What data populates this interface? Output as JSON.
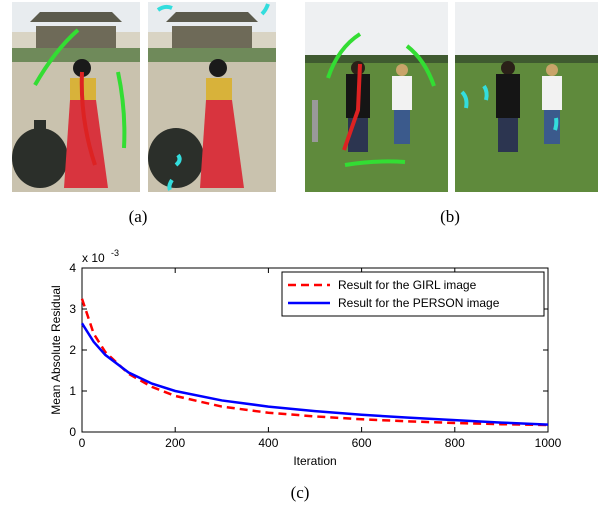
{
  "captions": [
    "(a)",
    "(b)",
    "(c)"
  ],
  "chart_data": {
    "type": "line",
    "xlabel": "Iteration",
    "ylabel": "Mean Absolute Residual",
    "y_multiplier": "x 10",
    "y_multiplier_exponent": "-3",
    "x": [
      0,
      25,
      50,
      100,
      150,
      200,
      300,
      400,
      500,
      600,
      700,
      800,
      900,
      1000
    ],
    "series": [
      {
        "name": "Result for the GIRL image",
        "color": "#ff0000",
        "dash": true,
        "values": [
          3.25,
          2.4,
          1.95,
          1.42,
          1.1,
          0.88,
          0.62,
          0.47,
          0.38,
          0.31,
          0.26,
          0.22,
          0.19,
          0.17
        ]
      },
      {
        "name": "Result for the PERSON image",
        "color": "#0000ff",
        "dash": false,
        "values": [
          2.65,
          2.2,
          1.88,
          1.45,
          1.18,
          1.0,
          0.77,
          0.62,
          0.51,
          0.42,
          0.35,
          0.29,
          0.23,
          0.18
        ]
      }
    ],
    "xlim": [
      0,
      1000
    ],
    "xticks": [
      0,
      200,
      400,
      600,
      800,
      1000
    ],
    "ylim": [
      0,
      4
    ],
    "yticks": [
      0,
      1,
      2,
      3,
      4
    ],
    "legend": "upper right"
  }
}
